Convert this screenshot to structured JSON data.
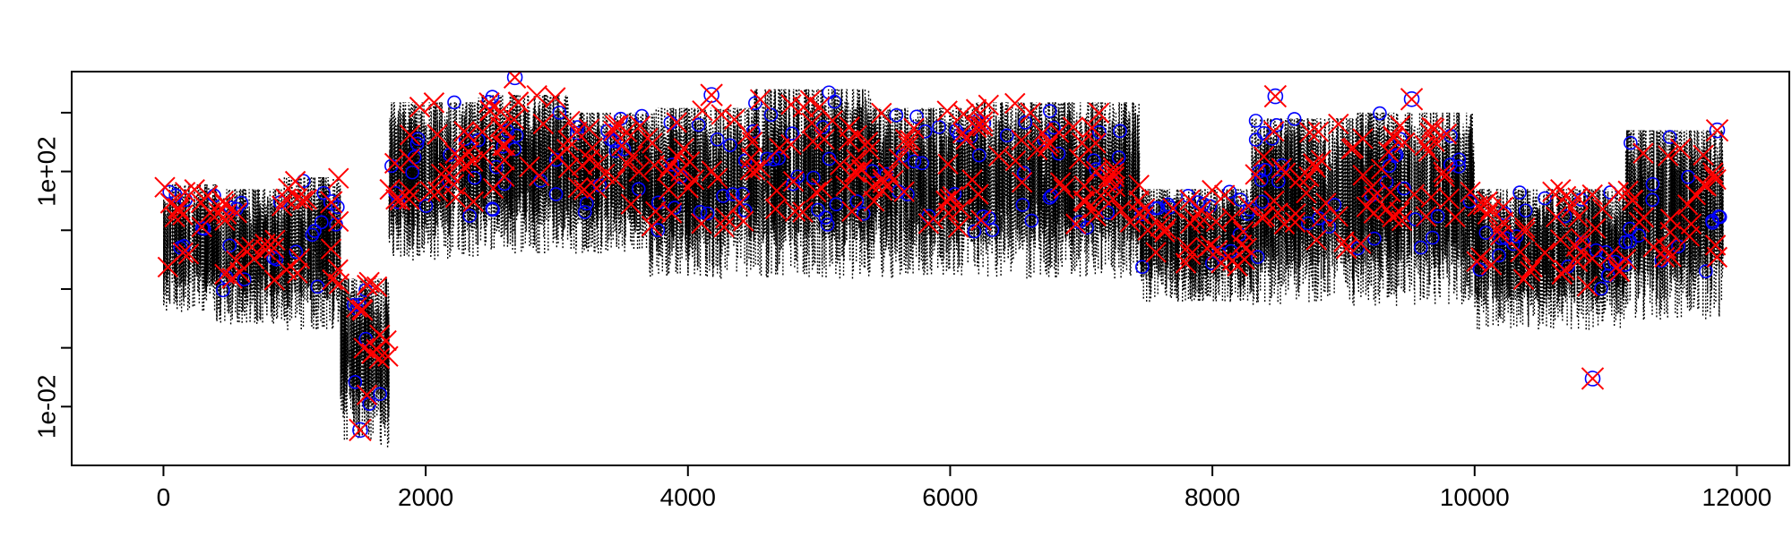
{
  "chart_data": {
    "type": "line",
    "title": "",
    "xlabel": "",
    "ylabel": "",
    "x_scale": "linear",
    "y_scale": "log10",
    "xlim": [
      -700,
      12400
    ],
    "ylim": [
      0.001,
      5000
    ],
    "x_ticks": [
      {
        "value": 0,
        "label": "0"
      },
      {
        "value": 2000,
        "label": "2000"
      },
      {
        "value": 4000,
        "label": "4000"
      },
      {
        "value": 6000,
        "label": "6000"
      },
      {
        "value": 8000,
        "label": "8000"
      },
      {
        "value": 10000,
        "label": "10000"
      },
      {
        "value": 12000,
        "label": "12000"
      }
    ],
    "y_ticks": [
      {
        "value": 0.01,
        "label": "1e-02"
      },
      {
        "value": 0.1,
        "label": ""
      },
      {
        "value": 1,
        "label": ""
      },
      {
        "value": 10,
        "label": ""
      },
      {
        "value": 100,
        "label": "1e+02"
      },
      {
        "value": 1000,
        "label": ""
      }
    ],
    "grid": false,
    "legend": "none",
    "segments": [
      {
        "x_start": 0,
        "x_end": 400,
        "y_low": 0.4,
        "y_high": 60
      },
      {
        "x_start": 400,
        "x_end": 900,
        "y_low": 0.25,
        "y_high": 50
      },
      {
        "x_start": 900,
        "x_end": 1350,
        "y_low": 0.2,
        "y_high": 80
      },
      {
        "x_start": 1350,
        "x_end": 1720,
        "y_low": 0.002,
        "y_high": 1.5
      },
      {
        "x_start": 1720,
        "x_end": 2400,
        "y_low": 3,
        "y_high": 1500
      },
      {
        "x_start": 2400,
        "x_end": 3100,
        "y_low": 4,
        "y_high": 2000
      },
      {
        "x_start": 3100,
        "x_end": 3700,
        "y_low": 4,
        "y_high": 1000
      },
      {
        "x_start": 3700,
        "x_end": 4500,
        "y_low": 1.5,
        "y_high": 1200
      },
      {
        "x_start": 4500,
        "x_end": 5400,
        "y_low": 1.5,
        "y_high": 2500
      },
      {
        "x_start": 5400,
        "x_end": 6200,
        "y_low": 1.5,
        "y_high": 1200
      },
      {
        "x_start": 6200,
        "x_end": 7450,
        "y_low": 1.5,
        "y_high": 1500
      },
      {
        "x_start": 7450,
        "x_end": 8300,
        "y_low": 0.6,
        "y_high": 50
      },
      {
        "x_start": 8300,
        "x_end": 9100,
        "y_low": 0.5,
        "y_high": 800
      },
      {
        "x_start": 9100,
        "x_end": 10000,
        "y_low": 0.5,
        "y_high": 1000
      },
      {
        "x_start": 10000,
        "x_end": 11150,
        "y_low": 0.2,
        "y_high": 50
      },
      {
        "x_start": 11150,
        "x_end": 11900,
        "y_low": 0.3,
        "y_high": 500
      }
    ],
    "series": [
      {
        "marker": "dotted-line",
        "color": "#000000"
      },
      {
        "marker": "circle",
        "color": "#0000ff"
      },
      {
        "marker": "x",
        "color": "#ff0000"
      }
    ],
    "notable_points": [
      {
        "x": 1280,
        "y": 30,
        "marker": "circle"
      },
      {
        "x": 1500,
        "y": 0.004,
        "marker": "circle"
      },
      {
        "x": 2680,
        "y": 4000,
        "marker": "circle"
      },
      {
        "x": 4180,
        "y": 2000,
        "marker": "circle"
      },
      {
        "x": 8480,
        "y": 1900,
        "marker": "circle"
      },
      {
        "x": 9520,
        "y": 1700,
        "marker": "circle"
      },
      {
        "x": 11850,
        "y": 500,
        "marker": "circle"
      },
      {
        "x": 10900,
        "y": 0.03,
        "marker": "circle"
      }
    ]
  }
}
